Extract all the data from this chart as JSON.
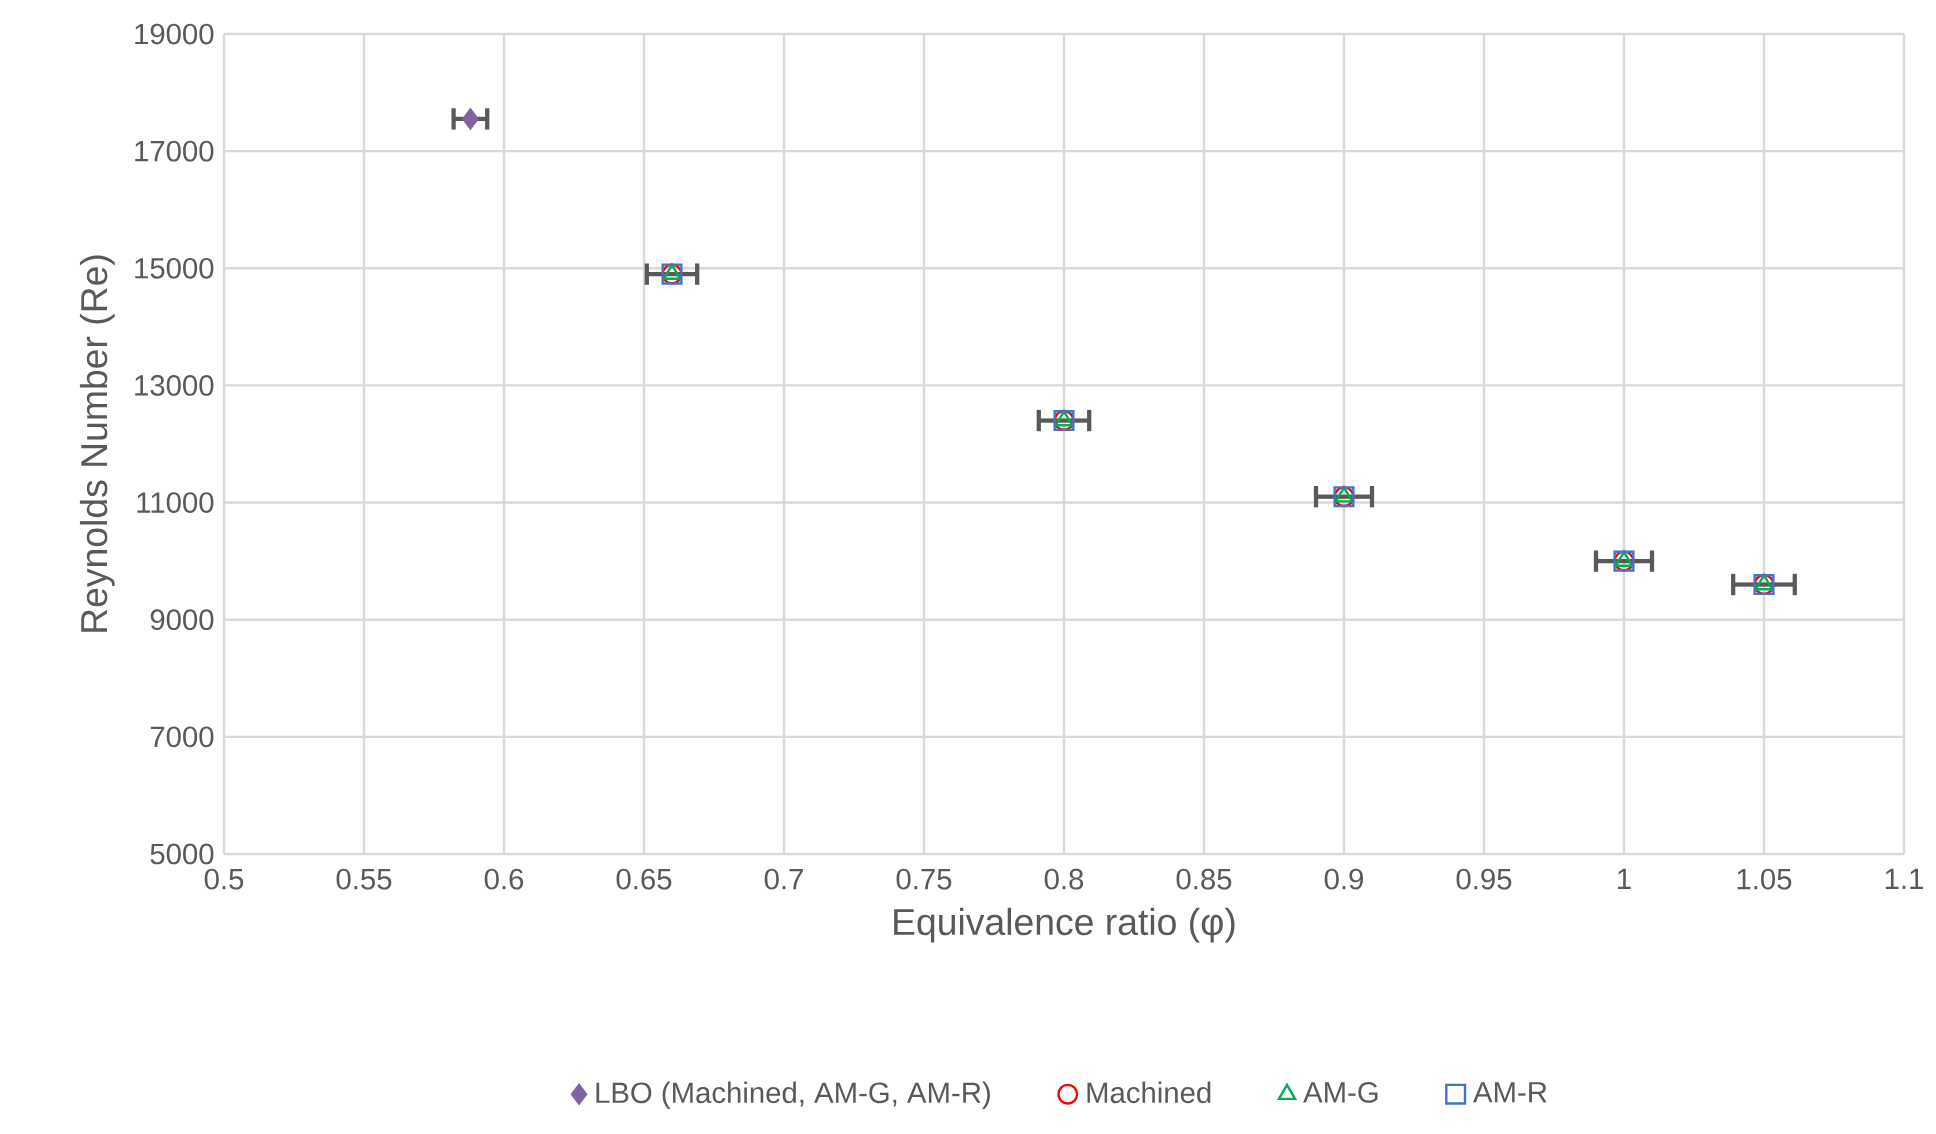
{
  "chart_data": {
    "type": "scatter",
    "xlabel": "Equivalence ratio (φ)",
    "ylabel": "Reynolds Number (Re)",
    "xlim": [
      0.5,
      1.1
    ],
    "xticks": [
      0.5,
      0.55,
      0.6,
      0.65,
      0.7,
      0.75,
      0.8,
      0.85,
      0.9,
      0.95,
      1,
      1.05,
      1.1
    ],
    "ylim": [
      5000,
      19000
    ],
    "yticks": [
      5000,
      7000,
      9000,
      11000,
      13000,
      15000,
      17000,
      19000
    ],
    "grid": true,
    "legend": "bottom",
    "series": [
      {
        "name": "LBO (Machined, AM-G, AM-R)",
        "color": "#8064a2",
        "marker": "diamond",
        "x": [
          0.588
        ],
        "values": [
          17550
        ],
        "xerrors": [
          0.006
        ]
      },
      {
        "name": "Machined",
        "color": "#ff0000",
        "marker": "circle",
        "x": [
          0.66,
          0.8,
          0.9,
          1,
          1.05
        ],
        "values": [
          14900,
          12400,
          11100,
          10000,
          9600
        ],
        "xerrors": [
          0.009,
          0.009,
          0.01,
          0.01,
          0.011
        ]
      },
      {
        "name": "AM-G",
        "color": "#00b050",
        "marker": "triangle",
        "x": [
          0.66,
          0.8,
          0.9,
          1,
          1.05
        ],
        "values": [
          14900,
          12400,
          11100,
          10000,
          9600
        ]
      },
      {
        "name": "AM-R",
        "color": "#4472c4",
        "marker": "square",
        "x": [
          0.66,
          0.8,
          0.9,
          1,
          1.05
        ],
        "values": [
          14900,
          12400,
          11100,
          10000,
          9600
        ]
      }
    ]
  }
}
